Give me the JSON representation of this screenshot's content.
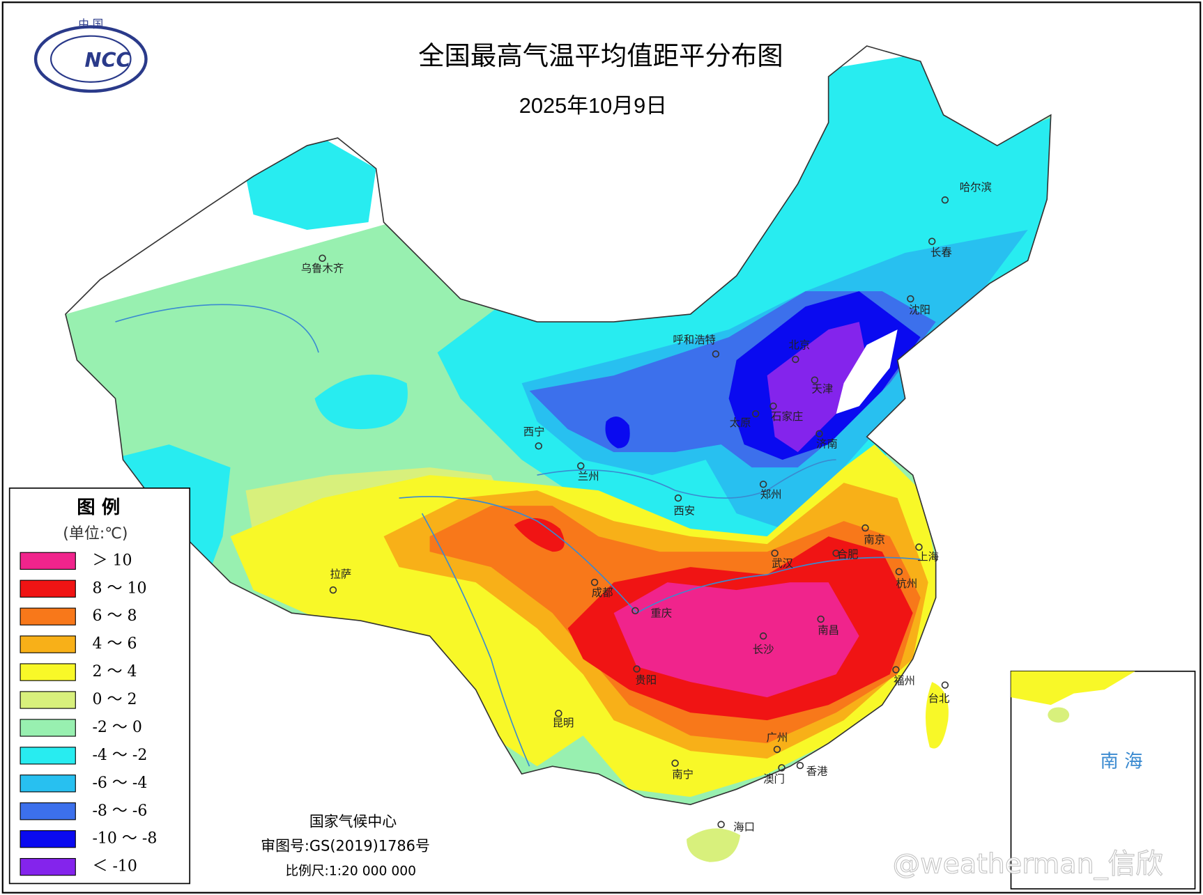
{
  "logo": {
    "top": "中 国",
    "mark": "NCC"
  },
  "header": {
    "title": "全国最高气温平均值距平分布图",
    "date": "2025年10月9日"
  },
  "legend": {
    "title": "图  例",
    "unit": "(单位:℃)",
    "items": [
      {
        "label": "＞ 10",
        "color": "#f0248c"
      },
      {
        "label": "8 ～ 10",
        "color": "#f01414"
      },
      {
        "label": "6 ～ 8",
        "color": "#f8781a"
      },
      {
        "label": "4 ～ 6",
        "color": "#f8b018"
      },
      {
        "label": "2 ～ 4",
        "color": "#f8f828"
      },
      {
        "label": "0 ～ 2",
        "color": "#d8f07c"
      },
      {
        "label": "-2 ～ 0",
        "color": "#98f0b0"
      },
      {
        "label": "-4 ～ -2",
        "color": "#28ecf0"
      },
      {
        "label": "-6 ～ -4",
        "color": "#28c0f0"
      },
      {
        "label": "-8 ～ -6",
        "color": "#3c70ec"
      },
      {
        "label": "-10 ～ -8",
        "color": "#0a0af0"
      },
      {
        "label": "＜ -10",
        "color": "#8424ec"
      }
    ]
  },
  "cities": [
    "乌鲁木齐",
    "呼和浩特",
    "北京",
    "天津",
    "石家庄",
    "太原",
    "济南",
    "西宁",
    "兰州",
    "郑州",
    "西安",
    "拉萨",
    "成都",
    "重庆",
    "武汉",
    "合肥",
    "南京",
    "上海",
    "杭州",
    "南昌",
    "长沙",
    "贵阳",
    "福州",
    "台北",
    "昆明",
    "广州",
    "南宁",
    "澳门",
    "香港",
    "海口",
    "沈阳",
    "长春",
    "哈尔滨"
  ],
  "inset": {
    "label": "南 海"
  },
  "footer": {
    "agency": "国家气候中心",
    "approval": "审图号:GS(2019)1786号",
    "scale": "比例尺:1:20 000 000"
  },
  "watermark": "@weatherman_信欣"
}
